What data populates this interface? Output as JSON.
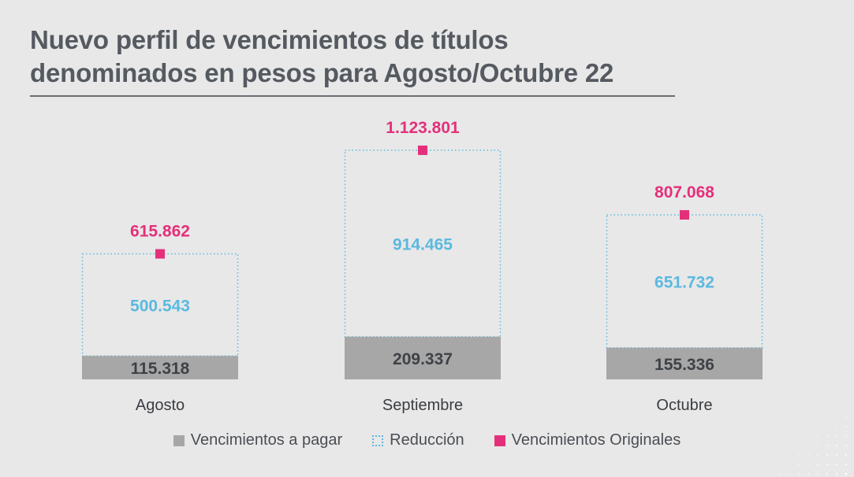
{
  "title_line1": "Nuevo perfil de vencimientos de títulos",
  "title_line2": "denominados en pesos para Agosto/Octubre 22",
  "legend": {
    "pagar": "Vencimientos a pagar",
    "reduccion": "Reducción",
    "originales": "Vencimientos Originales"
  },
  "colors": {
    "pagar": "#a7a7a7",
    "reduccion": "#5bb9e0",
    "originales": "#e4307a"
  },
  "chart_data": {
    "type": "bar",
    "stacked": true,
    "categories": [
      "Agosto",
      "Septiembre",
      "Octubre"
    ],
    "series": [
      {
        "name": "Vencimientos a pagar",
        "values": [
          115318,
          209337,
          155336
        ],
        "labels": [
          "115.318",
          "209.337",
          "155.336"
        ]
      },
      {
        "name": "Reducción",
        "values": [
          500543,
          914465,
          651732
        ],
        "labels": [
          "500.543",
          "914.465",
          "651.732"
        ]
      },
      {
        "name": "Vencimientos Originales",
        "values": [
          615862,
          1123801,
          807068
        ],
        "labels": [
          "615.862",
          "1.123.801",
          "807.068"
        ]
      }
    ],
    "grid": false,
    "legend_position": "bottom"
  }
}
